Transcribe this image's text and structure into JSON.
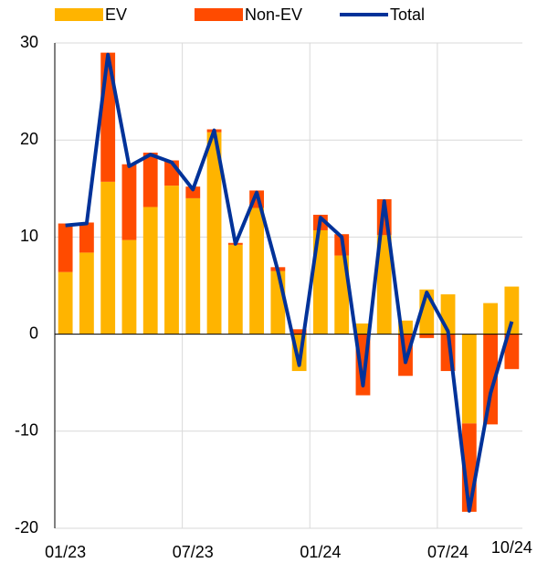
{
  "chart_data": {
    "type": "bar",
    "categories": [
      "01/23",
      null,
      null,
      null,
      null,
      null,
      "07/23",
      null,
      null,
      null,
      null,
      null,
      "01/24",
      null,
      null,
      null,
      null,
      null,
      "07/24",
      null,
      null,
      "10/24"
    ],
    "series": [
      {
        "name": "EV",
        "color": "#ffb400",
        "type": "bar",
        "values": [
          6.4,
          8.4,
          15.7,
          9.7,
          13.1,
          15.3,
          14.0,
          20.8,
          9.2,
          13.0,
          6.5,
          -3.8,
          10.7,
          8.1,
          1.1,
          10.2,
          1.4,
          4.6,
          4.1,
          -9.2,
          3.2,
          4.9
        ]
      },
      {
        "name": "Non-EV",
        "color": "#ff4b00",
        "type": "bar",
        "values": [
          5.0,
          3.1,
          13.3,
          7.8,
          5.6,
          2.6,
          1.2,
          0.3,
          0.2,
          1.8,
          0.4,
          0.5,
          1.6,
          2.2,
          -6.3,
          3.7,
          -4.3,
          -0.4,
          -3.8,
          -9.1,
          -9.3,
          -3.6
        ]
      },
      {
        "name": "Total",
        "color": "#003299",
        "type": "line",
        "values": [
          11.2,
          11.4,
          28.8,
          17.3,
          18.5,
          17.7,
          14.9,
          21.0,
          9.3,
          14.6,
          6.5,
          -3.2,
          12.0,
          10.0,
          -5.3,
          13.7,
          -2.9,
          4.3,
          0.3,
          -18.2,
          -6.1,
          1.3
        ]
      }
    ],
    "ylim": [
      -20,
      30
    ],
    "yticks": [
      -20,
      -10,
      0,
      10,
      20,
      30
    ],
    "grid": true
  }
}
